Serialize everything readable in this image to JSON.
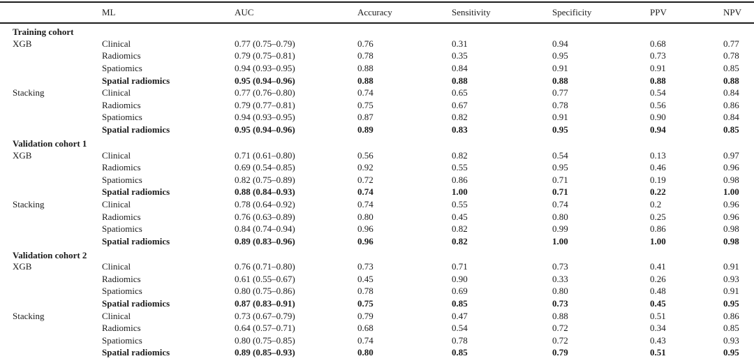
{
  "table": {
    "columns": [
      "",
      "ML",
      "AUC",
      "Accuracy",
      "Sensitivity",
      "Specificity",
      "PPV",
      "NPV"
    ],
    "sections": [
      {
        "title": "Training cohort",
        "groups": [
          {
            "model": "XGB",
            "rows": [
              {
                "ml": "Clinical",
                "auc": "0.77 (0.75–0.79)",
                "accuracy": "0.76",
                "sensitivity": "0.31",
                "specificity": "0.94",
                "ppv": "0.68",
                "npv": "0.77",
                "bold": false
              },
              {
                "ml": "Radiomics",
                "auc": "0.79 (0.75–0.81)",
                "accuracy": "0.78",
                "sensitivity": "0.35",
                "specificity": "0.95",
                "ppv": "0.73",
                "npv": "0.78",
                "bold": false
              },
              {
                "ml": "Spatiomics",
                "auc": "0.94 (0.93–0.95)",
                "accuracy": "0.88",
                "sensitivity": "0.84",
                "specificity": "0.91",
                "ppv": "0.91",
                "npv": "0.85",
                "bold": false
              },
              {
                "ml": "Spatial radiomics",
                "auc": "0.95 (0.94–0.96)",
                "accuracy": "0.88",
                "sensitivity": "0.88",
                "specificity": "0.88",
                "ppv": "0.88",
                "npv": "0.88",
                "bold": true
              }
            ]
          },
          {
            "model": "Stacking",
            "rows": [
              {
                "ml": "Clinical",
                "auc": "0.77 (0.76–0.80)",
                "accuracy": "0.74",
                "sensitivity": "0.65",
                "specificity": "0.77",
                "ppv": "0.54",
                "npv": "0.84",
                "bold": false
              },
              {
                "ml": "Radiomics",
                "auc": "0.79 (0.77–0.81)",
                "accuracy": "0.75",
                "sensitivity": "0.67",
                "specificity": "0.78",
                "ppv": "0.56",
                "npv": "0.86",
                "bold": false
              },
              {
                "ml": "Spatiomics",
                "auc": "0.94 (0.93–0.95)",
                "accuracy": "0.87",
                "sensitivity": "0.82",
                "specificity": "0.91",
                "ppv": "0.90",
                "npv": "0.84",
                "bold": false
              },
              {
                "ml": "Spatial radiomics",
                "auc": "0.95 (0.94–0.96)",
                "accuracy": "0.89",
                "sensitivity": "0.83",
                "specificity": "0.95",
                "ppv": "0.94",
                "npv": "0.85",
                "bold": true
              }
            ]
          }
        ]
      },
      {
        "title": "Validation cohort 1",
        "groups": [
          {
            "model": "XGB",
            "rows": [
              {
                "ml": "Clinical",
                "auc": "0.71 (0.61–0.80)",
                "accuracy": "0.56",
                "sensitivity": "0.82",
                "specificity": "0.54",
                "ppv": "0.13",
                "npv": "0.97",
                "bold": false
              },
              {
                "ml": "Radiomics",
                "auc": "0.69 (0.54–0.85)",
                "accuracy": "0.92",
                "sensitivity": "0.55",
                "specificity": "0.95",
                "ppv": "0.46",
                "npv": "0.96",
                "bold": false
              },
              {
                "ml": "Spatiomics",
                "auc": "0.82 (0.75–0.89)",
                "accuracy": "0.72",
                "sensitivity": "0.86",
                "specificity": "0.71",
                "ppv": "0.19",
                "npv": "0.98",
                "bold": false
              },
              {
                "ml": "Spatial radiomics",
                "auc": "0.88 (0.84–0.93)",
                "accuracy": "0.74",
                "sensitivity": "1.00",
                "specificity": "0.71",
                "ppv": "0.22",
                "npv": "1.00",
                "bold": true
              }
            ]
          },
          {
            "model": "Stacking",
            "rows": [
              {
                "ml": "Clinical",
                "auc": "0.78 (0.64–0.92)",
                "accuracy": "0.74",
                "sensitivity": "0.55",
                "specificity": "0.74",
                "ppv": "0.2",
                "npv": "0.96",
                "bold": false
              },
              {
                "ml": "Radiomics",
                "auc": "0.76 (0.63–0.89)",
                "accuracy": "0.80",
                "sensitivity": "0.45",
                "specificity": "0.80",
                "ppv": "0.25",
                "npv": "0.96",
                "bold": false
              },
              {
                "ml": "Spatiomics",
                "auc": "0.84 (0.74–0.94)",
                "accuracy": "0.96",
                "sensitivity": "0.82",
                "specificity": "0.99",
                "ppv": "0.86",
                "npv": "0.98",
                "bold": false
              },
              {
                "ml": "Spatial radiomics",
                "auc": "0.89 (0.83–0.96)",
                "accuracy": "0.96",
                "sensitivity": "0.82",
                "specificity": "1.00",
                "ppv": "1.00",
                "npv": "0.98",
                "bold": true
              }
            ]
          }
        ]
      },
      {
        "title": "Validation cohort 2",
        "groups": [
          {
            "model": "XGB",
            "rows": [
              {
                "ml": "Clinical",
                "auc": "0.76 (0.71–0.80)",
                "accuracy": "0.73",
                "sensitivity": "0.71",
                "specificity": "0.73",
                "ppv": "0.41",
                "npv": "0.91",
                "bold": false
              },
              {
                "ml": "Radiomics",
                "auc": "0.61 (0.55–0.67)",
                "accuracy": "0.45",
                "sensitivity": "0.90",
                "specificity": "0.33",
                "ppv": "0.26",
                "npv": "0.93",
                "bold": false
              },
              {
                "ml": "Spatiomics",
                "auc": "0.80 (0.75–0.86)",
                "accuracy": "0.78",
                "sensitivity": "0.69",
                "specificity": "0.80",
                "ppv": "0.48",
                "npv": "0.91",
                "bold": false
              },
              {
                "ml": "Spatial radiomics",
                "auc": "0.87 (0.83–0.91)",
                "accuracy": "0.75",
                "sensitivity": "0.85",
                "specificity": "0.73",
                "ppv": "0.45",
                "npv": "0.95",
                "bold": true
              }
            ]
          },
          {
            "model": "Stacking",
            "rows": [
              {
                "ml": "Clinical",
                "auc": "0.73 (0.67–0.79)",
                "accuracy": "0.79",
                "sensitivity": "0.47",
                "specificity": "0.88",
                "ppv": "0.51",
                "npv": "0.86",
                "bold": false
              },
              {
                "ml": "Radiomics",
                "auc": "0.64 (0.57–0.71)",
                "accuracy": "0.68",
                "sensitivity": "0.54",
                "specificity": "0.72",
                "ppv": "0.34",
                "npv": "0.85",
                "bold": false
              },
              {
                "ml": "Spatiomics",
                "auc": "0.80 (0.75–0.85)",
                "accuracy": "0.74",
                "sensitivity": "0.78",
                "specificity": "0.72",
                "ppv": "0.43",
                "npv": "0.93",
                "bold": false
              },
              {
                "ml": "Spatial radiomics",
                "auc": "0.89 (0.85–0.93)",
                "accuracy": "0.80",
                "sensitivity": "0.85",
                "specificity": "0.79",
                "ppv": "0.51",
                "npv": "0.95",
                "bold": true
              }
            ]
          }
        ]
      }
    ]
  }
}
